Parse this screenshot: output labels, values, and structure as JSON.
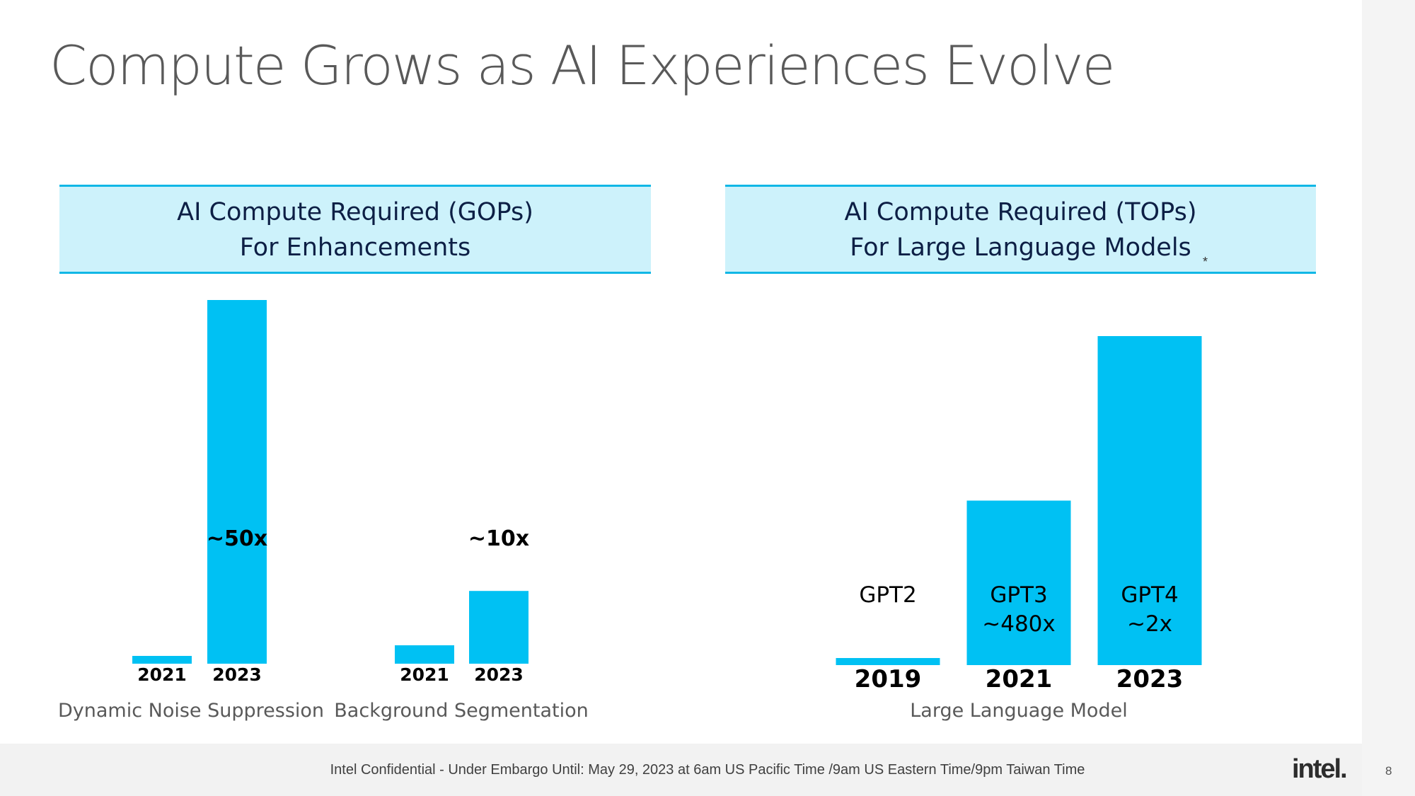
{
  "slide": {
    "title": "Compute Grows as AI Experiences Evolve",
    "footer": "Intel Confidential - Under Embargo Until: May 29, 2023 at 6am US Pacific Time /9am US Eastern Time/9pm Taiwan Time",
    "logo": "intel.",
    "page_number": "8",
    "colors": {
      "bar": "#00c1f3",
      "panel_bg": "#cdf2fb",
      "panel_border": "#11b7e6",
      "title": "#595959"
    }
  },
  "panels": {
    "left": {
      "line1": "AI Compute Required (GOPs)",
      "line2": "For Enhancements"
    },
    "right": {
      "line1": "AI Compute Required (TOPs)",
      "line2": "For Large Language Models",
      "asterisk": "*"
    }
  },
  "chart_data": [
    {
      "type": "bar",
      "title": "AI Compute Required (GOPs) For Enhancements",
      "ylim": [
        0,
        52
      ],
      "grid": false,
      "groups": [
        {
          "label": "Dynamic Noise Suppression",
          "categories": [
            "2021",
            "2023"
          ],
          "values": [
            1,
            50
          ],
          "bar_labels": [
            "",
            "~50x"
          ]
        },
        {
          "label": "Background Segmentation",
          "categories": [
            "2021",
            "2023"
          ],
          "values": [
            1,
            10
          ],
          "bar_labels": [
            "",
            "~10x"
          ]
        }
      ]
    },
    {
      "type": "bar",
      "title": "AI Compute Required (TOPs) For Large Language Models",
      "ylim": [
        0,
        1000
      ],
      "grid": false,
      "groups": [
        {
          "label": "Large Language Model",
          "categories": [
            "2019",
            "2021",
            "2023"
          ],
          "values": [
            1,
            480,
            960
          ],
          "bar_labels": [
            [
              "GPT2"
            ],
            [
              "GPT3",
              "~480x"
            ],
            [
              "GPT4",
              "~2x"
            ]
          ]
        }
      ]
    }
  ]
}
